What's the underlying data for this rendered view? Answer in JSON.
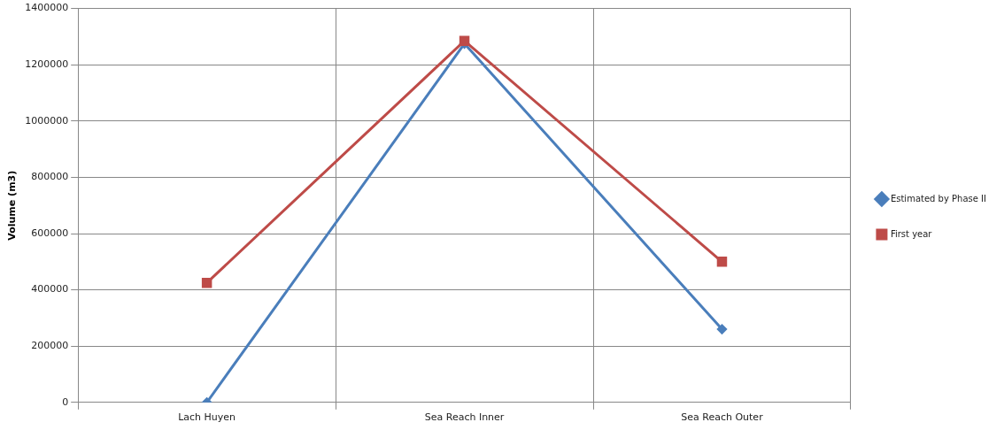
{
  "chart_data": {
    "type": "line",
    "ylabel": "Volume (m3)",
    "categories": [
      "Lach Huyen",
      "Sea Reach Inner",
      "Sea Reach Outer"
    ],
    "series": [
      {
        "name": "Estimated by Phase II",
        "color": "#4a7ebb",
        "marker": "diamond",
        "values": [
          0,
          1275000,
          260000
        ]
      },
      {
        "name": "First year",
        "color": "#be4b48",
        "marker": "square",
        "values": [
          425000,
          1285000,
          500000
        ]
      }
    ],
    "ylim": [
      0,
      1400000
    ],
    "yticks": [
      0,
      200000,
      400000,
      600000,
      800000,
      1000000,
      1200000,
      1400000
    ],
    "grid": true,
    "legend": "right",
    "line_style": "solid"
  }
}
